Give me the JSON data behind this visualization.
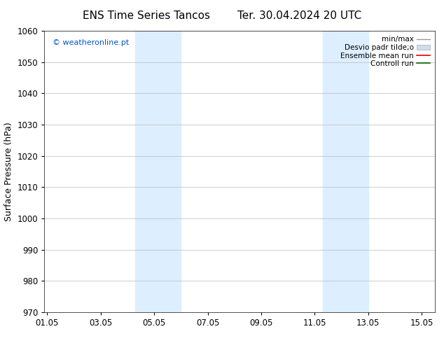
{
  "title_left": "ENS Time Series Tancos",
  "title_right": "Ter. 30.04.2024 20 UTC",
  "ylabel": "Surface Pressure (hPa)",
  "ylim": [
    970,
    1060
  ],
  "yticks": [
    970,
    980,
    990,
    1000,
    1010,
    1020,
    1030,
    1040,
    1050,
    1060
  ],
  "xtick_labels": [
    "01.05",
    "03.05",
    "05.05",
    "07.05",
    "09.05",
    "11.05",
    "13.05",
    "15.05"
  ],
  "xtick_positions": [
    0,
    2,
    4,
    6,
    8,
    10,
    12,
    14
  ],
  "xlim": [
    -0.1,
    14.5
  ],
  "shaded_bands": [
    {
      "x_start": 3.3,
      "x_end": 5.0
    },
    {
      "x_start": 10.3,
      "x_end": 12.0
    }
  ],
  "shaded_color": "#ddeeff",
  "watermark_text": "© weatheronline.pt",
  "watermark_color": "#0055cc",
  "bg_color": "#ffffff",
  "grid_color": "#bbbbbb",
  "title_fontsize": 11,
  "label_fontsize": 9,
  "tick_fontsize": 8.5,
  "legend_fontsize": 7.5
}
